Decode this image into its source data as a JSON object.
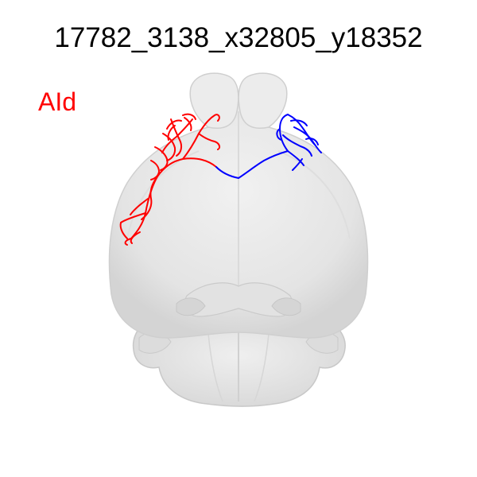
{
  "image": {
    "title": "17782_3138_x32805_y18352",
    "region_label": "AId"
  },
  "colors": {
    "background": "#ffffff",
    "title": "#000000",
    "region_label": "#ff0000",
    "brain_fill": "#e6e6e6",
    "brain_shade": "#d2d2d2",
    "neuron_left": "#ff0000",
    "neuron_right": "#0000ff"
  },
  "scene": {
    "view": "dorsal view of mouse brain",
    "objects": [
      "mouse-brain-outline",
      "neuron-axon-left-hemisphere",
      "neuron-axon-right-hemisphere"
    ]
  }
}
